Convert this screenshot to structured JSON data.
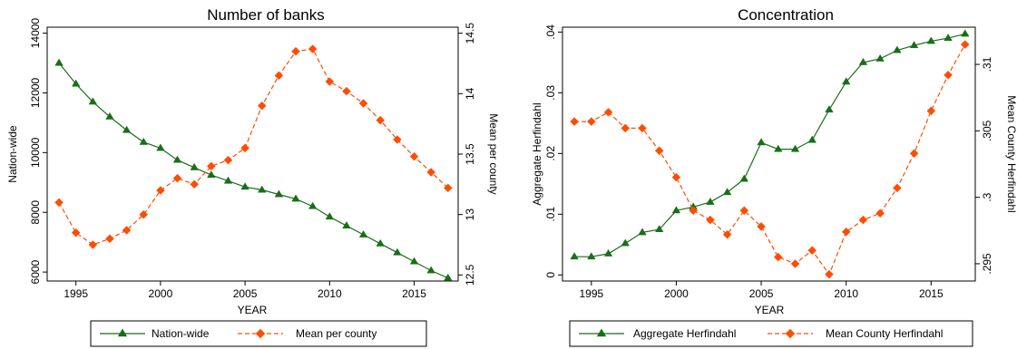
{
  "colors": {
    "series1": "#1a6e1a",
    "series2": "#ff4d00",
    "axis": "#000000",
    "background": "#ffffff"
  },
  "chart_data": [
    {
      "type": "line",
      "title": "Number of banks",
      "xlabel": "YEAR",
      "ylabel": "Nation-wide",
      "y2label": "Mean per county",
      "xlim": [
        1993.3,
        2017.6
      ],
      "ylim": [
        5700,
        14200
      ],
      "y2lim": [
        12.45,
        14.55
      ],
      "xticks": [
        "1995",
        "2000",
        "2005",
        "2010",
        "2015"
      ],
      "yticks": [
        "6000",
        "8000",
        "10000",
        "12000",
        "14000"
      ],
      "y2ticks": [
        "12.5",
        "13",
        "13.5",
        "14",
        "14.5"
      ],
      "grid": false,
      "legend": "bottom",
      "x": [
        1994,
        1995,
        1996,
        1997,
        1998,
        1999,
        2000,
        2001,
        2002,
        2003,
        2004,
        2005,
        2006,
        2007,
        2008,
        2009,
        2010,
        2011,
        2012,
        2013,
        2014,
        2015,
        2016,
        2017
      ],
      "series": [
        {
          "name": "Nation-wide",
          "axis": "left",
          "marker": "triangle",
          "style": "solid",
          "values": [
            13000,
            12300,
            11700,
            11200,
            10750,
            10350,
            10150,
            9750,
            9500,
            9250,
            9050,
            8850,
            8750,
            8600,
            8450,
            8200,
            7850,
            7550,
            7250,
            6950,
            6650,
            6350,
            6050,
            5800
          ]
        },
        {
          "name": "Mean per county",
          "axis": "right",
          "marker": "diamond",
          "style": "dashed",
          "values": [
            13.1,
            12.85,
            12.75,
            12.8,
            12.87,
            13.0,
            13.2,
            13.3,
            13.25,
            13.4,
            13.45,
            13.55,
            13.9,
            14.15,
            14.35,
            14.37,
            14.1,
            14.02,
            13.92,
            13.78,
            13.62,
            13.48,
            13.35,
            13.22
          ]
        }
      ]
    },
    {
      "type": "line",
      "title": "Concentration",
      "xlabel": "YEAR",
      "ylabel": "Aggregate Herfindahl",
      "y2label": "Mean County Herfindahl",
      "xlim": [
        1993.3,
        2017.6
      ],
      "ylim": [
        -0.001,
        0.0408
      ],
      "y2lim": [
        0.2937,
        0.3128
      ],
      "xticks": [
        "1995",
        "2000",
        "2005",
        "2010",
        "2015"
      ],
      "yticks": [
        "0",
        ".01",
        ".02",
        ".03",
        ".04"
      ],
      "y2ticks": [
        ".295",
        ".3",
        ".305",
        ".31"
      ],
      "grid": false,
      "legend": "bottom",
      "x": [
        1994,
        1995,
        1996,
        1997,
        1998,
        1999,
        2000,
        2001,
        2002,
        2003,
        2004,
        2005,
        2006,
        2007,
        2008,
        2009,
        2010,
        2011,
        2012,
        2013,
        2014,
        2015,
        2016,
        2017
      ],
      "series": [
        {
          "name": "Aggregate Herfindahl",
          "axis": "left",
          "marker": "triangle",
          "style": "solid",
          "values": [
            0.003,
            0.003,
            0.0035,
            0.0052,
            0.007,
            0.0075,
            0.0106,
            0.0112,
            0.012,
            0.0136,
            0.0158,
            0.0218,
            0.0207,
            0.0207,
            0.0222,
            0.0272,
            0.0318,
            0.035,
            0.0356,
            0.037,
            0.0378,
            0.0385,
            0.039,
            0.0397
          ]
        },
        {
          "name": "Mean County Herfindahl",
          "axis": "right",
          "marker": "diamond",
          "style": "dashed",
          "values": [
            0.3057,
            0.3057,
            0.3064,
            0.3052,
            0.3052,
            0.3035,
            0.3015,
            0.299,
            0.2983,
            0.2972,
            0.299,
            0.2978,
            0.2955,
            0.295,
            0.296,
            0.2942,
            0.2974,
            0.2983,
            0.2988,
            0.3007,
            0.3033,
            0.3065,
            0.3092,
            0.3115
          ]
        }
      ]
    }
  ]
}
